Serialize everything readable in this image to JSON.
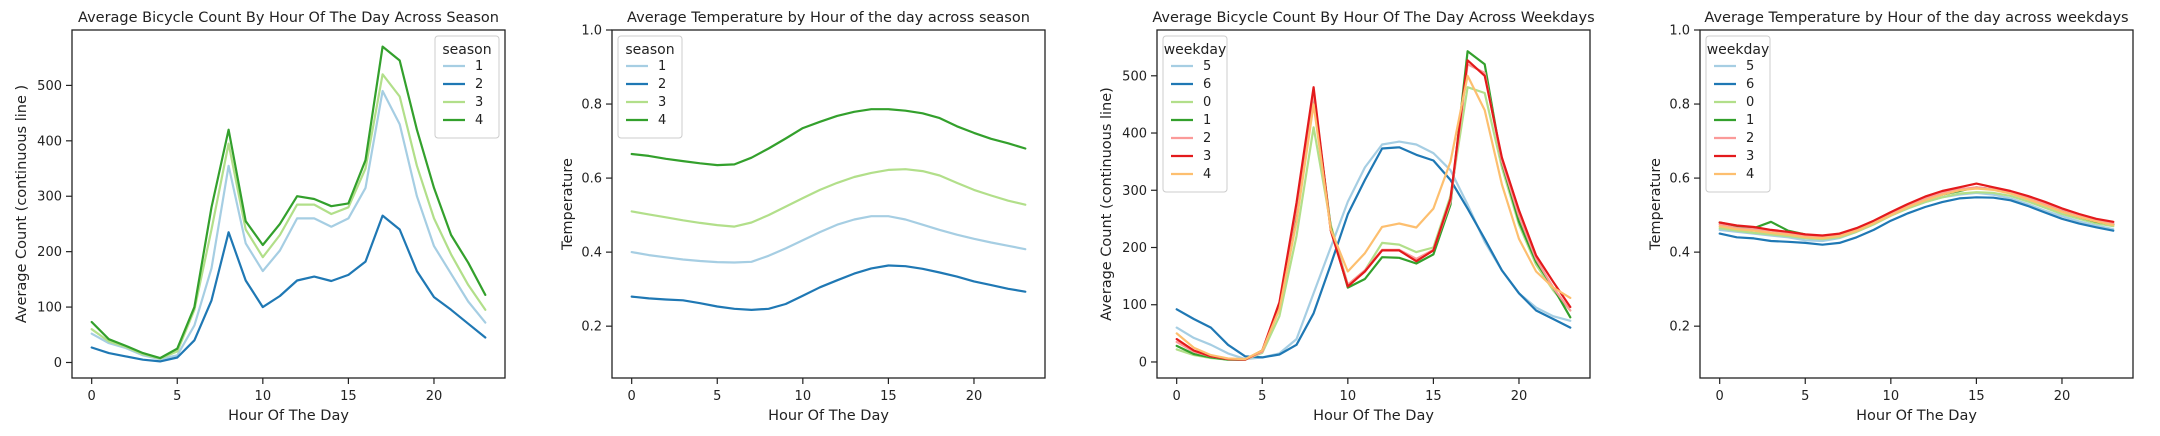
{
  "chart_data": [
    {
      "type": "line",
      "title": "Average Bicycle Count By Hour Of The Day Across Season",
      "xlabel": "Hour Of The Day",
      "ylabel": "Average Count (continuous line )",
      "xlim": [
        -1.15,
        24.15
      ],
      "ylim": [
        -28,
        600
      ],
      "xticks": [
        0,
        5,
        10,
        15,
        20
      ],
      "yticks": [
        0,
        100,
        200,
        300,
        400,
        500
      ],
      "legend_title": "season",
      "legend_loc": "top-right",
      "x": [
        0,
        1,
        2,
        3,
        4,
        5,
        6,
        7,
        8,
        9,
        10,
        11,
        12,
        13,
        14,
        15,
        16,
        17,
        18,
        19,
        20,
        21,
        22,
        23
      ],
      "series": [
        {
          "name": "1",
          "color": "#a6cee3",
          "values": [
            52,
            35,
            26,
            13,
            6,
            13,
            67,
            170,
            355,
            215,
            165,
            202,
            260,
            260,
            245,
            260,
            315,
            490,
            430,
            300,
            210,
            160,
            110,
            72
          ]
        },
        {
          "name": "2",
          "color": "#1f78b4",
          "values": [
            27,
            17,
            11,
            5,
            2,
            9,
            40,
            112,
            235,
            148,
            100,
            120,
            148,
            155,
            147,
            158,
            182,
            265,
            240,
            165,
            118,
            95,
            70,
            45
          ]
        },
        {
          "name": "3",
          "color": "#b2df8a",
          "values": [
            60,
            38,
            28,
            15,
            7,
            20,
            95,
            240,
            395,
            240,
            190,
            230,
            285,
            285,
            268,
            280,
            350,
            520,
            480,
            355,
            260,
            195,
            140,
            95
          ]
        },
        {
          "name": "4",
          "color": "#33a02c",
          "values": [
            73,
            42,
            30,
            17,
            8,
            25,
            100,
            280,
            420,
            255,
            212,
            250,
            300,
            295,
            282,
            287,
            365,
            570,
            545,
            420,
            315,
            230,
            180,
            122
          ]
        }
      ]
    },
    {
      "type": "line",
      "title": "Average Temperature by Hour of the day across season",
      "xlabel": "Hour Of The Day",
      "ylabel": "Temperature",
      "xlim": [
        -1.15,
        24.15
      ],
      "ylim": [
        0.06,
        1.0
      ],
      "xticks": [
        0,
        5,
        10,
        15,
        20
      ],
      "yticks": [
        0.2,
        0.4,
        0.6,
        0.8,
        1.0
      ],
      "legend_title": "season",
      "legend_loc": "top-left",
      "x": [
        0,
        1,
        2,
        3,
        4,
        5,
        6,
        7,
        8,
        9,
        10,
        11,
        12,
        13,
        14,
        15,
        16,
        17,
        18,
        19,
        20,
        21,
        22,
        23
      ],
      "series": [
        {
          "name": "1",
          "color": "#a6cee3",
          "values": [
            0.4,
            0.392,
            0.386,
            0.38,
            0.376,
            0.373,
            0.372,
            0.374,
            0.39,
            0.41,
            0.432,
            0.454,
            0.474,
            0.488,
            0.497,
            0.497,
            0.488,
            0.474,
            0.46,
            0.447,
            0.436,
            0.426,
            0.417,
            0.408
          ]
        },
        {
          "name": "2",
          "color": "#1f78b4",
          "values": [
            0.28,
            0.275,
            0.272,
            0.27,
            0.262,
            0.253,
            0.247,
            0.244,
            0.247,
            0.26,
            0.282,
            0.305,
            0.324,
            0.342,
            0.356,
            0.364,
            0.362,
            0.355,
            0.345,
            0.334,
            0.321,
            0.311,
            0.301,
            0.293
          ]
        },
        {
          "name": "3",
          "color": "#b2df8a",
          "values": [
            0.51,
            0.502,
            0.494,
            0.486,
            0.479,
            0.473,
            0.469,
            0.48,
            0.5,
            0.523,
            0.546,
            0.568,
            0.587,
            0.603,
            0.614,
            0.622,
            0.624,
            0.619,
            0.607,
            0.587,
            0.568,
            0.553,
            0.539,
            0.528
          ]
        },
        {
          "name": "4",
          "color": "#33a02c",
          "values": [
            0.665,
            0.66,
            0.652,
            0.646,
            0.64,
            0.635,
            0.637,
            0.655,
            0.68,
            0.707,
            0.735,
            0.752,
            0.768,
            0.779,
            0.786,
            0.786,
            0.782,
            0.775,
            0.762,
            0.74,
            0.722,
            0.706,
            0.694,
            0.68
          ]
        }
      ]
    },
    {
      "type": "line",
      "title": "Average Bicycle Count By Hour Of The Day Across Weekdays",
      "xlabel": "Hour Of The Day",
      "ylabel": "Average Count (continuous line)",
      "xlim": [
        -1.15,
        24.15
      ],
      "ylim": [
        -28,
        580
      ],
      "xticks": [
        0,
        5,
        10,
        15,
        20
      ],
      "yticks": [
        0,
        100,
        200,
        300,
        400,
        500
      ],
      "legend_title": "weekday",
      "legend_loc": "top-left",
      "x": [
        0,
        1,
        2,
        3,
        4,
        5,
        6,
        7,
        8,
        9,
        10,
        11,
        12,
        13,
        14,
        15,
        16,
        17,
        18,
        19,
        20,
        21,
        22,
        23
      ],
      "series": [
        {
          "name": "5",
          "color": "#a6cee3",
          "values": [
            60,
            42,
            30,
            15,
            5,
            8,
            15,
            40,
            120,
            200,
            280,
            340,
            380,
            385,
            380,
            365,
            335,
            275,
            210,
            160,
            120,
            95,
            80,
            72
          ]
        },
        {
          "name": "6",
          "color": "#1f78b4",
          "values": [
            92,
            75,
            60,
            30,
            10,
            8,
            13,
            30,
            85,
            170,
            258,
            318,
            373,
            375,
            362,
            352,
            318,
            268,
            215,
            160,
            120,
            90,
            75,
            60
          ]
        },
        {
          "name": "0",
          "color": "#b2df8a",
          "values": [
            22,
            12,
            7,
            4,
            4,
            16,
            80,
            220,
            410,
            240,
            135,
            160,
            208,
            205,
            192,
            200,
            290,
            480,
            470,
            340,
            240,
            170,
            125,
            90
          ]
        },
        {
          "name": "1",
          "color": "#33a02c",
          "values": [
            28,
            14,
            8,
            4,
            4,
            20,
            96,
            260,
            470,
            236,
            130,
            145,
            183,
            182,
            172,
            188,
            275,
            543,
            520,
            348,
            245,
            175,
            130,
            78
          ]
        },
        {
          "name": "2",
          "color": "#fb9a99",
          "values": [
            35,
            18,
            10,
            5,
            4,
            18,
            100,
            270,
            470,
            232,
            135,
            160,
            196,
            196,
            180,
            196,
            280,
            520,
            505,
            350,
            255,
            180,
            130,
            90
          ]
        },
        {
          "name": "3",
          "color": "#e31a1c",
          "values": [
            40,
            20,
            10,
            5,
            4,
            20,
            104,
            278,
            480,
            230,
            132,
            158,
            195,
            195,
            176,
            195,
            285,
            527,
            500,
            357,
            265,
            186,
            140,
            96
          ]
        },
        {
          "name": "4",
          "color": "#fdbf6f",
          "values": [
            50,
            25,
            12,
            6,
            5,
            20,
            92,
            245,
            450,
            232,
            158,
            190,
            236,
            242,
            235,
            268,
            350,
            500,
            440,
            310,
            215,
            158,
            130,
            112
          ]
        }
      ]
    },
    {
      "type": "line",
      "title": "Average Temperature by Hour of the day across weekdays",
      "xlabel": "Hour Of The Day",
      "ylabel": "Temperature",
      "xlim": [
        -1.15,
        24.15
      ],
      "ylim": [
        0.06,
        1.0
      ],
      "xticks": [
        0,
        5,
        10,
        15,
        20
      ],
      "yticks": [
        0.2,
        0.4,
        0.6,
        0.8,
        1.0
      ],
      "legend_title": "weekday",
      "legend_loc": "top-left",
      "x": [
        0,
        1,
        2,
        3,
        4,
        5,
        6,
        7,
        8,
        9,
        10,
        11,
        12,
        13,
        14,
        15,
        16,
        17,
        18,
        19,
        20,
        21,
        22,
        23
      ],
      "series": [
        {
          "name": "5",
          "color": "#a6cee3",
          "values": [
            0.46,
            0.455,
            0.45,
            0.445,
            0.44,
            0.432,
            0.43,
            0.438,
            0.455,
            0.475,
            0.5,
            0.518,
            0.535,
            0.548,
            0.555,
            0.56,
            0.555,
            0.545,
            0.53,
            0.512,
            0.497,
            0.483,
            0.472,
            0.462
          ]
        },
        {
          "name": "6",
          "color": "#1f78b4",
          "values": [
            0.45,
            0.44,
            0.437,
            0.43,
            0.428,
            0.425,
            0.42,
            0.425,
            0.44,
            0.46,
            0.485,
            0.505,
            0.522,
            0.535,
            0.545,
            0.548,
            0.547,
            0.54,
            0.525,
            0.507,
            0.49,
            0.477,
            0.467,
            0.458
          ]
        },
        {
          "name": "0",
          "color": "#b2df8a",
          "values": [
            0.465,
            0.458,
            0.452,
            0.448,
            0.443,
            0.438,
            0.435,
            0.44,
            0.455,
            0.475,
            0.498,
            0.518,
            0.535,
            0.548,
            0.558,
            0.562,
            0.56,
            0.552,
            0.537,
            0.52,
            0.503,
            0.49,
            0.478,
            0.47
          ]
        },
        {
          "name": "1",
          "color": "#33a02c",
          "values": [
            0.48,
            0.47,
            0.465,
            0.482,
            0.458,
            0.448,
            0.44,
            0.448,
            0.462,
            0.482,
            0.505,
            0.525,
            0.542,
            0.555,
            0.565,
            0.575,
            0.57,
            0.56,
            0.545,
            0.527,
            0.51,
            0.495,
            0.482,
            0.475
          ]
        },
        {
          "name": "2",
          "color": "#fb9a99",
          "values": [
            0.475,
            0.465,
            0.462,
            0.458,
            0.452,
            0.445,
            0.44,
            0.445,
            0.46,
            0.48,
            0.505,
            0.525,
            0.545,
            0.56,
            0.57,
            0.575,
            0.57,
            0.562,
            0.548,
            0.532,
            0.515,
            0.5,
            0.488,
            0.478
          ]
        },
        {
          "name": "3",
          "color": "#e31a1c",
          "values": [
            0.48,
            0.472,
            0.468,
            0.46,
            0.455,
            0.448,
            0.445,
            0.45,
            0.465,
            0.485,
            0.508,
            0.53,
            0.55,
            0.565,
            0.575,
            0.585,
            0.575,
            0.565,
            0.552,
            0.536,
            0.518,
            0.503,
            0.49,
            0.482
          ]
        },
        {
          "name": "4",
          "color": "#fdbf6f",
          "values": [
            0.47,
            0.462,
            0.458,
            0.452,
            0.447,
            0.44,
            0.438,
            0.443,
            0.458,
            0.478,
            0.5,
            0.522,
            0.54,
            0.555,
            0.567,
            0.572,
            0.568,
            0.558,
            0.543,
            0.526,
            0.509,
            0.495,
            0.483,
            0.473
          ]
        }
      ]
    }
  ]
}
